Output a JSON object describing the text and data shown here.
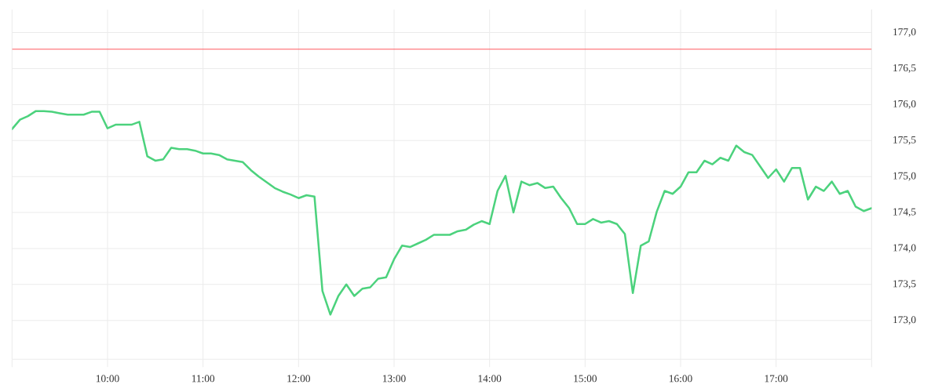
{
  "chart_data": {
    "type": "line",
    "x": [
      9,
      9.0833,
      9.1667,
      9.25,
      9.3333,
      9.4167,
      9.5,
      9.5833,
      9.6667,
      9.75,
      9.8333,
      9.9167,
      10,
      10.0833,
      10.1667,
      10.25,
      10.3333,
      10.4167,
      10.5,
      10.5833,
      10.6667,
      10.75,
      10.8333,
      10.9167,
      11,
      11.0833,
      11.1667,
      11.25,
      11.3333,
      11.4167,
      11.5,
      11.5833,
      11.6667,
      11.75,
      11.8333,
      11.9167,
      12,
      12.0833,
      12.1667,
      12.25,
      12.3333,
      12.4167,
      12.5,
      12.5833,
      12.6667,
      12.75,
      12.8333,
      12.9167,
      13,
      13.0833,
      13.1667,
      13.25,
      13.3333,
      13.4167,
      13.5,
      13.5833,
      13.6667,
      13.75,
      13.8333,
      13.9167,
      14,
      14.0833,
      14.1667,
      14.25,
      14.3333,
      14.4167,
      14.5,
      14.5833,
      14.6667,
      14.75,
      14.8333,
      14.9167,
      15,
      15.0833,
      15.1667,
      15.25,
      15.3333,
      15.4167,
      15.5,
      15.5833,
      15.6667,
      15.75,
      15.8333,
      15.9167,
      16,
      16.0833,
      16.1667,
      16.25,
      16.3333,
      16.4167,
      16.5,
      16.5833,
      16.6667,
      16.75,
      16.8333,
      16.9167,
      17,
      17.0833,
      17.1667,
      17.25,
      17.3333,
      17.4167,
      17.5,
      17.5833,
      17.6667,
      17.75,
      17.8333,
      17.9167,
      18
    ],
    "values": [
      175.66,
      175.79,
      175.84,
      175.91,
      175.91,
      175.9,
      175.88,
      175.86,
      175.86,
      175.86,
      175.9,
      175.9,
      175.67,
      175.72,
      175.72,
      175.72,
      175.76,
      175.28,
      175.22,
      175.24,
      175.4,
      175.38,
      175.38,
      175.36,
      175.32,
      175.32,
      175.3,
      175.24,
      175.22,
      175.2,
      175.09,
      175.0,
      174.92,
      174.84,
      174.79,
      174.75,
      174.7,
      174.74,
      174.72,
      173.41,
      173.08,
      173.34,
      173.5,
      173.34,
      173.44,
      173.46,
      173.58,
      173.6,
      173.85,
      174.04,
      174.02,
      174.07,
      174.12,
      174.19,
      174.19,
      174.19,
      174.24,
      174.26,
      174.33,
      174.38,
      174.34,
      174.8,
      175.01,
      174.5,
      174.93,
      174.88,
      174.91,
      174.84,
      174.86,
      174.7,
      174.56,
      174.34,
      174.34,
      174.41,
      174.36,
      174.38,
      174.34,
      174.2,
      173.38,
      174.04,
      174.1,
      174.51,
      174.8,
      174.76,
      174.86,
      175.06,
      175.06,
      175.22,
      175.17,
      175.26,
      175.22,
      175.43,
      175.34,
      175.3,
      175.14,
      174.98,
      175.1,
      174.93,
      175.12,
      175.12,
      174.68,
      174.86,
      174.8,
      174.93,
      174.76,
      174.8,
      174.58,
      174.52,
      174.56
    ],
    "color": "#4cd27d",
    "xlim": [
      9,
      18
    ],
    "xticks": [
      {
        "value": 9,
        "label": null
      },
      {
        "value": 10,
        "label": "10:00"
      },
      {
        "value": 11,
        "label": "11:00"
      },
      {
        "value": 12,
        "label": "12:00"
      },
      {
        "value": 13,
        "label": "13:00"
      },
      {
        "value": 14,
        "label": "14:00"
      },
      {
        "value": 15,
        "label": "15:00"
      },
      {
        "value": 16,
        "label": "16:00"
      },
      {
        "value": 17,
        "label": "17:00"
      },
      {
        "value": 18,
        "label": null
      }
    ],
    "ylim": [
      172.46,
      177.32
    ],
    "yticks": [
      {
        "value": 173,
        "label": "173,0"
      },
      {
        "value": 173.5,
        "label": "173,5"
      },
      {
        "value": 174,
        "label": "174,0"
      },
      {
        "value": 174.5,
        "label": "174,5"
      },
      {
        "value": 175,
        "label": "175,0"
      },
      {
        "value": 175.5,
        "label": "175,5"
      },
      {
        "value": 176,
        "label": "176,0"
      },
      {
        "value": 176.5,
        "label": "176,5"
      },
      {
        "value": 177,
        "label": "177,0"
      }
    ],
    "ref_lines": [
      {
        "axis": "y",
        "value": 176.77,
        "color": "#ff5a5f"
      }
    ],
    "grid": true
  }
}
